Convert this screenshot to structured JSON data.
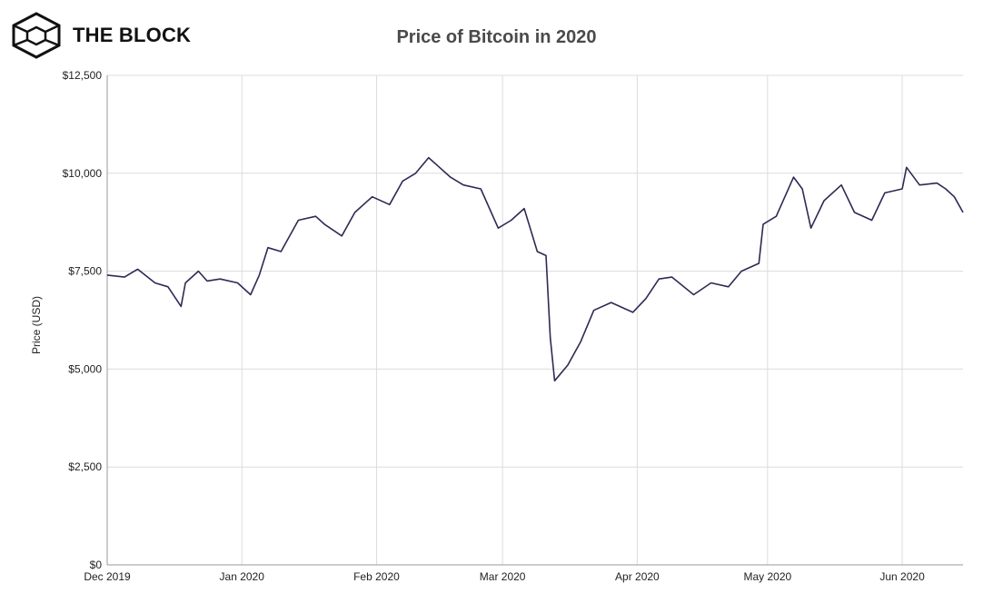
{
  "brand": {
    "name": "THE BLOCK",
    "logo_icon": "cube-icon"
  },
  "chart_data": {
    "type": "line",
    "title": "Price of Bitcoin in 2020",
    "ylabel": "Price (USD)",
    "xlabel": "",
    "x_ticks": [
      "Dec 2019",
      "Jan 2020",
      "Feb 2020",
      "Mar 2020",
      "Apr 2020",
      "May 2020",
      "Jun 2020"
    ],
    "y_ticks": [
      "$0",
      "$2,500",
      "$5,000",
      "$7,500",
      "$10,000",
      "$12,500"
    ],
    "ylim": [
      0,
      12500
    ],
    "xlim": [
      "2019-12-01",
      "2020-06-15"
    ],
    "grid": true,
    "series": [
      {
        "color": "#2d2a55",
        "x": [
          "2019-12-01",
          "2019-12-05",
          "2019-12-08",
          "2019-12-12",
          "2019-12-15",
          "2019-12-18",
          "2019-12-19",
          "2019-12-22",
          "2019-12-24",
          "2019-12-27",
          "2019-12-31",
          "2020-01-03",
          "2020-01-05",
          "2020-01-07",
          "2020-01-10",
          "2020-01-14",
          "2020-01-18",
          "2020-01-20",
          "2020-01-24",
          "2020-01-27",
          "2020-01-31",
          "2020-02-04",
          "2020-02-07",
          "2020-02-10",
          "2020-02-13",
          "2020-02-15",
          "2020-02-18",
          "2020-02-21",
          "2020-02-25",
          "2020-02-29",
          "2020-03-03",
          "2020-03-06",
          "2020-03-09",
          "2020-03-11",
          "2020-03-12",
          "2020-03-13",
          "2020-03-16",
          "2020-03-19",
          "2020-03-22",
          "2020-03-26",
          "2020-03-31",
          "2020-04-03",
          "2020-04-06",
          "2020-04-09",
          "2020-04-14",
          "2020-04-18",
          "2020-04-22",
          "2020-04-25",
          "2020-04-29",
          "2020-04-30",
          "2020-05-03",
          "2020-05-07",
          "2020-05-09",
          "2020-05-11",
          "2020-05-14",
          "2020-05-18",
          "2020-05-21",
          "2020-05-25",
          "2020-05-28",
          "2020-06-01",
          "2020-06-02",
          "2020-06-05",
          "2020-06-09",
          "2020-06-11",
          "2020-06-13",
          "2020-06-15"
        ],
        "y": [
          7400,
          7350,
          7550,
          7200,
          7100,
          6600,
          7200,
          7500,
          7250,
          7300,
          7200,
          6900,
          7400,
          8100,
          8000,
          8800,
          8900,
          8700,
          8400,
          9000,
          9400,
          9200,
          9800,
          10000,
          10400,
          10200,
          9900,
          9700,
          9600,
          8600,
          8800,
          9100,
          8000,
          7900,
          5800,
          4700,
          5100,
          5700,
          6500,
          6700,
          6450,
          6800,
          7300,
          7350,
          6900,
          7200,
          7100,
          7500,
          7700,
          8700,
          8900,
          9900,
          9600,
          8600,
          9300,
          9700,
          9000,
          8800,
          9500,
          9600,
          10150,
          9700,
          9750,
          9600,
          9400,
          9000
        ]
      }
    ]
  }
}
